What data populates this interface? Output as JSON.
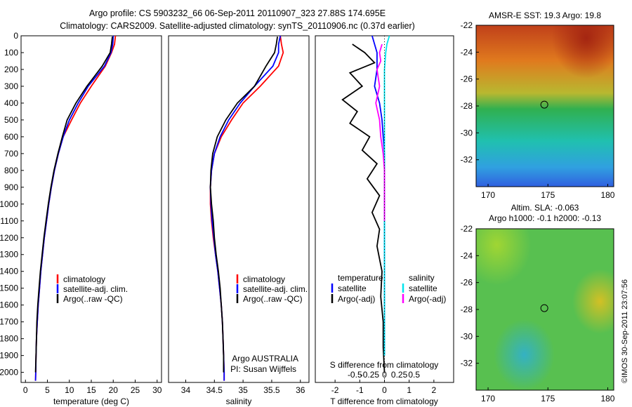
{
  "header": {
    "title_line1": "Argo profile: CS 5903232_66 06-Sep-2011 20110907_323 27.88S 174.695E",
    "title_line2": "Climatology: CARS2009. Satellite-adjusted climatology: synTS_20110906.nc (0.37d earlier)"
  },
  "colors": {
    "climatology": "#ff0000",
    "satellite": "#0000ff",
    "argo": "#000000",
    "salinity_satellite": "#00e5ee",
    "salinity_argo": "#ff00ff"
  },
  "chart_data": [
    {
      "type": "line",
      "xlabel": "temperature (deg C)",
      "ylabel": "",
      "xlim": [
        -1,
        31
      ],
      "ylim": [
        2060,
        0
      ],
      "xticks": [
        0,
        5,
        10,
        15,
        20,
        25,
        30
      ],
      "yticks": [
        0,
        100,
        200,
        300,
        400,
        500,
        600,
        700,
        800,
        900,
        1000,
        1100,
        1200,
        1300,
        1400,
        1500,
        1600,
        1700,
        1800,
        1900,
        2000
      ],
      "legend": [
        "climatology",
        "satellite-adj. clim.",
        "Argo(..raw -QC)"
      ],
      "series": [
        {
          "name": "climatology",
          "x": [
            20.5,
            20.3,
            19.6,
            18.2,
            15.0,
            12.5,
            10.5,
            8.6,
            7.5,
            6.6,
            5.9,
            5.3,
            4.8,
            4.3,
            3.9,
            3.5,
            3.2,
            2.9,
            2.7,
            2.5,
            2.4,
            2.35,
            2.3
          ],
          "y": [
            0,
            50,
            100,
            180,
            300,
            400,
            500,
            600,
            700,
            800,
            900,
            1000,
            1100,
            1200,
            1300,
            1400,
            1500,
            1600,
            1700,
            1800,
            1900,
            2000,
            2050
          ]
        },
        {
          "name": "satellite-adj. clim.",
          "x": [
            20.0,
            19.9,
            19.5,
            18.0,
            14.3,
            12.0,
            10.0,
            8.6,
            7.5,
            6.6,
            5.9,
            5.3,
            4.8,
            4.3,
            3.9,
            3.5,
            3.2,
            2.9,
            2.7,
            2.5,
            2.4,
            2.35,
            2.3
          ],
          "y": [
            0,
            50,
            100,
            180,
            300,
            400,
            500,
            600,
            700,
            800,
            900,
            1000,
            1100,
            1200,
            1300,
            1400,
            1500,
            1600,
            1700,
            1800,
            1900,
            2000,
            2050
          ]
        },
        {
          "name": "Argo(..raw -QC)",
          "x": [
            19.8,
            19.6,
            19.3,
            17.5,
            14.0,
            11.5,
            9.5,
            8.4,
            7.4,
            6.5,
            5.8,
            5.2,
            4.7,
            4.2,
            3.8,
            3.4,
            3.1,
            2.8,
            2.6,
            2.5,
            2.4,
            2.3
          ],
          "y": [
            5,
            50,
            100,
            180,
            300,
            400,
            500,
            600,
            700,
            800,
            900,
            1000,
            1100,
            1200,
            1300,
            1400,
            1500,
            1600,
            1700,
            1800,
            1900,
            2000
          ]
        }
      ]
    },
    {
      "type": "line",
      "xlabel": "salinity",
      "ylabel": "",
      "xlim": [
        33.7,
        36.15
      ],
      "ylim": [
        2060,
        0
      ],
      "xticks": [
        34,
        34.5,
        35,
        35.5,
        36
      ],
      "xticklabels": [
        "34",
        "34.5",
        "35",
        "35.5",
        "36"
      ],
      "legend": [
        "climatology",
        "satellite-adj. clim.",
        "Argo(..raw -QC)"
      ],
      "annotation_line1": "Argo AUSTRALIA",
      "annotation_line2": "PI: Susan Wijffels",
      "series": [
        {
          "name": "climatology",
          "x": [
            35.65,
            35.67,
            35.7,
            35.62,
            35.3,
            35.0,
            34.8,
            34.62,
            34.5,
            34.45,
            34.43,
            34.43,
            34.45,
            34.48,
            34.52,
            34.56,
            34.59,
            34.62,
            34.64,
            34.65,
            34.66,
            34.67,
            34.67
          ],
          "y": [
            0,
            50,
            100,
            180,
            300,
            400,
            500,
            600,
            700,
            800,
            900,
            1000,
            1100,
            1200,
            1300,
            1400,
            1500,
            1600,
            1700,
            1800,
            1900,
            2000,
            2050
          ]
        },
        {
          "name": "satellite-adj. clim.",
          "x": [
            35.65,
            35.62,
            35.62,
            35.52,
            35.2,
            34.95,
            34.75,
            34.6,
            34.5,
            34.45,
            34.43,
            34.44,
            34.46,
            34.49,
            34.52,
            34.56,
            34.59,
            34.62,
            34.64,
            34.65,
            34.66,
            34.67,
            34.67
          ],
          "y": [
            0,
            50,
            100,
            180,
            300,
            400,
            500,
            600,
            700,
            800,
            900,
            1000,
            1100,
            1200,
            1300,
            1400,
            1500,
            1600,
            1700,
            1800,
            1900,
            2000,
            2050
          ]
        },
        {
          "name": "Argo(..raw -QC)",
          "x": [
            35.6,
            35.58,
            35.55,
            35.4,
            35.2,
            34.9,
            34.7,
            34.55,
            34.47,
            34.44,
            34.43,
            34.45,
            34.48,
            34.5,
            34.53,
            34.57,
            34.6,
            34.62,
            34.64,
            34.65,
            34.66,
            34.66
          ],
          "y": [
            5,
            50,
            100,
            180,
            300,
            400,
            500,
            600,
            700,
            800,
            900,
            1000,
            1100,
            1200,
            1300,
            1400,
            1500,
            1600,
            1700,
            1800,
            1900,
            2000
          ]
        }
      ]
    },
    {
      "type": "line",
      "xlabel": "T difference from climatology",
      "ylabel": "",
      "xlim": [
        -2.8,
        2.8
      ],
      "ylim": [
        2060,
        0
      ],
      "xticks": [
        -2,
        -1,
        0,
        1,
        2
      ],
      "xticklabels": [
        "-2",
        "-1",
        "0",
        "1",
        "2"
      ],
      "secondary_xlabel": "S difference from climatology",
      "secondary_xticklabels": [
        "-0.5",
        "-0.25",
        "0",
        "0.25",
        "0.5"
      ],
      "legend_temperature_header": "temperature",
      "legend_salinity_header": "salinity",
      "legend": [
        "satellite",
        "Argo(-adj)",
        "satellite",
        "Argo(-adj)"
      ],
      "series": [
        {
          "name": "temperature satellite",
          "x": [
            -0.5,
            -0.4,
            -0.3,
            -0.3,
            -0.4,
            -0.2,
            -0.1,
            -0.05,
            0,
            0,
            0,
            0,
            0,
            0,
            0,
            0,
            0,
            0,
            0,
            0,
            0
          ],
          "y": [
            0,
            50,
            100,
            200,
            300,
            400,
            500,
            600,
            700,
            800,
            900,
            1000,
            1100,
            1200,
            1300,
            1400,
            1500,
            1600,
            1700,
            1800,
            1900
          ]
        },
        {
          "name": "temperature Argo(-adj)",
          "x": [
            -1.3,
            -0.8,
            -0.4,
            -1.4,
            -0.9,
            -1.7,
            -1.1,
            -1.4,
            -0.6,
            -0.9,
            -0.3,
            -0.7,
            -0.2,
            -0.5,
            -0.2,
            -0.3,
            -0.1,
            -0.15,
            -0.05,
            -0.05,
            0
          ],
          "y": [
            50,
            100,
            160,
            220,
            300,
            380,
            450,
            520,
            600,
            680,
            760,
            850,
            950,
            1050,
            1150,
            1250,
            1400,
            1550,
            1700,
            1850,
            2000
          ]
        },
        {
          "name": "salinity satellite",
          "x": [
            0.2,
            0.1,
            0.05,
            0,
            0,
            0,
            0,
            0,
            0,
            0,
            0,
            0,
            0,
            0,
            0,
            0,
            0,
            0,
            0,
            0
          ],
          "y": [
            0,
            50,
            100,
            200,
            300,
            400,
            500,
            600,
            700,
            800,
            900,
            1000,
            1100,
            1200,
            1300,
            1400,
            1500,
            1600,
            1700,
            1900
          ]
        },
        {
          "name": "salinity Argo(-adj)",
          "x": [
            -0.1,
            -0.2,
            -0.15,
            -0.3,
            -0.2,
            -0.35,
            -0.2,
            -0.15,
            -0.05,
            0,
            0,
            0,
            0
          ],
          "y": [
            50,
            100,
            150,
            200,
            300,
            400,
            500,
            600,
            700,
            800,
            900,
            1000,
            1100
          ]
        }
      ]
    },
    {
      "type": "heatmap",
      "title": "AMSR-E SST: 19.3 Argo: 19.8",
      "xlim": [
        169,
        180.5
      ],
      "ylim": [
        -34,
        -22
      ],
      "xticks": [
        170,
        175,
        180
      ],
      "yticks": [
        -22,
        -24,
        -26,
        -28,
        -30,
        -32
      ],
      "marker": {
        "x": 174.7,
        "y": -27.9
      }
    },
    {
      "type": "heatmap",
      "title": "Altim. SLA: -0.063",
      "subtitle": "Argo h1000: -0.1 h2000: -0.13",
      "xlim": [
        169,
        180.5
      ],
      "ylim": [
        -34,
        -22
      ],
      "xticks": [
        170,
        175,
        180
      ],
      "yticks": [
        -22,
        -24,
        -26,
        -28,
        -30,
        -32
      ],
      "marker": {
        "x": 174.7,
        "y": -27.9
      }
    }
  ],
  "footer": {
    "stamp": "©IMOS 30-Sep-2011 23:07:56"
  }
}
